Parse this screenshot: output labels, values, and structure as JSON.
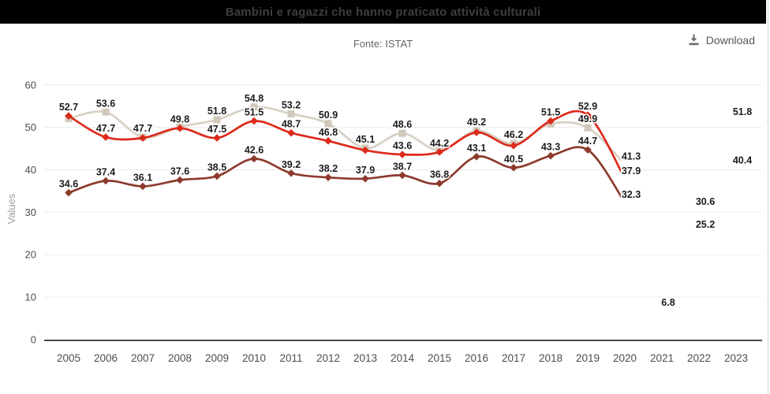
{
  "header": {
    "title": "Bambini e ragazzi che hanno praticato attività culturali",
    "source": "Fonte: ISTAT",
    "download_label": "Download"
  },
  "chart_data": {
    "type": "line",
    "title": "Bambini e ragazzi che hanno praticato attività culturali",
    "source": "Fonte: ISTAT",
    "ylabel": "Values",
    "ylim": [
      0,
      60
    ],
    "yticks": [
      0,
      10,
      20,
      30,
      40,
      50,
      60
    ],
    "grid": true,
    "legend": "none",
    "x": [
      2005,
      2006,
      2007,
      2008,
      2009,
      2010,
      2011,
      2012,
      2013,
      2014,
      2015,
      2016,
      2017,
      2018,
      2019,
      2020,
      2021,
      2022,
      2023
    ],
    "series": [
      {
        "name": "series_1",
        "color": "#d7d0c4",
        "marker_color": "#d0c8b9",
        "marker": "square",
        "x_start": 2005,
        "values": [
          52.1,
          53.6,
          47.7,
          50.1,
          51.8,
          54.8,
          53.2,
          50.9,
          45.1,
          48.6,
          44.6,
          49.2,
          46.2,
          50.8,
          49.9,
          41.3
        ],
        "labels": [
          "",
          "53.6",
          "47.7",
          "",
          "51.8",
          "54.8",
          "53.2",
          "50.9",
          "45.1",
          "48.6",
          "",
          "49.2",
          "46.2",
          "",
          "49.9",
          ""
        ]
      },
      {
        "name": "series_2",
        "color": "#dd2a1b",
        "marker_color": "#dd2a1b",
        "marker": "diamond",
        "x_start": 2005,
        "values": [
          52.7,
          47.7,
          47.5,
          49.8,
          47.5,
          51.5,
          48.7,
          46.8,
          44.6,
          43.6,
          44.2,
          48.8,
          45.7,
          51.5,
          52.9,
          37.9
        ],
        "labels": [
          "52.7",
          "47.7",
          "",
          "49.8",
          "47.5",
          "51.5",
          "48.7",
          "46.8",
          "",
          "43.6",
          "44.2",
          "",
          "",
          "51.5",
          "52.9",
          ""
        ]
      },
      {
        "name": "series_3",
        "color": "#8d3b2d",
        "marker_color": "#8d3b2d",
        "marker": "diamond",
        "x_start": 2005,
        "values": [
          34.6,
          37.4,
          36.1,
          37.6,
          38.5,
          42.6,
          39.2,
          38.2,
          37.9,
          38.7,
          36.8,
          43.1,
          40.5,
          43.3,
          44.7,
          32.3
        ],
        "labels": [
          "34.6",
          "37.4",
          "36.1",
          "37.6",
          "38.5",
          "42.6",
          "39.2",
          "38.2",
          "37.9",
          "38.7",
          "36.8",
          "43.1",
          "40.5",
          "43.3",
          "44.7",
          ""
        ]
      }
    ],
    "detached_labels": [
      {
        "x": 2020,
        "value": 41.3,
        "text": "41.3"
      },
      {
        "x": 2020,
        "value": 37.9,
        "text": "37.9"
      },
      {
        "x": 2020,
        "value": 32.3,
        "text": "32.3"
      },
      {
        "x": 2021,
        "value": 6.8,
        "text": "6.8"
      },
      {
        "x": 2022,
        "value": 30.6,
        "text": "30.6"
      },
      {
        "x": 2022,
        "value": 25.2,
        "text": "25.2"
      },
      {
        "x": 2023,
        "value": 51.8,
        "text": "51.8"
      },
      {
        "x": 2023,
        "value": 40.4,
        "text": "40.4"
      }
    ],
    "palette": {
      "grid": "#ececec",
      "axis": "#333333",
      "tick_text": "#4d4d4d",
      "data_label_text": "#1c1c1c",
      "axis_title_text": "#9e9e9e",
      "title_bar_bg": "#000000",
      "title_text": "#3d3d3d"
    }
  }
}
